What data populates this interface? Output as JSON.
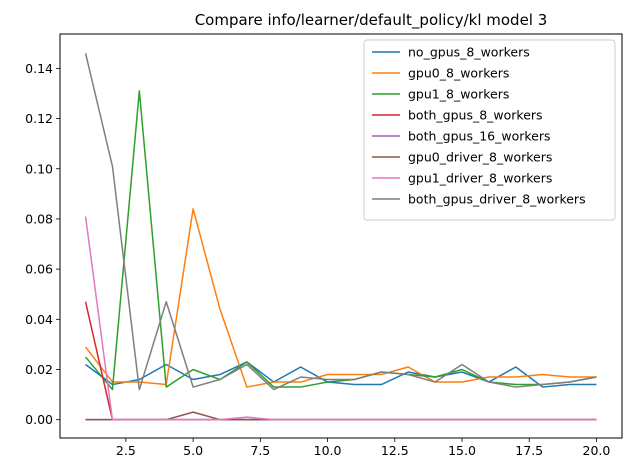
{
  "chart_data": {
    "type": "line",
    "title": "Compare info/learner/default_policy/kl model 3",
    "xlabel": "",
    "ylabel": "",
    "xlim": [
      0.05,
      20.95
    ],
    "ylim": [
      -0.0073,
      0.1537
    ],
    "xticks": [
      2.5,
      5.0,
      7.5,
      10.0,
      12.5,
      15.0,
      17.5,
      20.0
    ],
    "xtick_labels": [
      "2.5",
      "5.0",
      "7.5",
      "10.0",
      "12.5",
      "15.0",
      "17.5",
      "20.0"
    ],
    "yticks": [
      0.0,
      0.02,
      0.04,
      0.06,
      0.08,
      0.1,
      0.12,
      0.14
    ],
    "ytick_labels": [
      "0.00",
      "0.02",
      "0.04",
      "0.06",
      "0.08",
      "0.10",
      "0.12",
      "0.14"
    ],
    "grid": false,
    "legend_position": "top-right",
    "x": [
      1,
      2,
      3,
      4,
      5,
      6,
      7,
      8,
      9,
      10,
      11,
      12,
      13,
      14,
      15,
      16,
      17,
      18,
      19,
      20
    ],
    "series": [
      {
        "name": "no_gpus_8_workers",
        "color": "#1f77b4",
        "values": [
          0.022,
          0.014,
          0.016,
          0.022,
          0.016,
          0.018,
          0.023,
          0.015,
          0.021,
          0.015,
          0.014,
          0.014,
          0.019,
          0.017,
          0.019,
          0.015,
          0.021,
          0.013,
          0.014,
          0.014
        ]
      },
      {
        "name": "gpu0_8_workers",
        "color": "#ff7f0e",
        "values": [
          0.029,
          0.015,
          0.015,
          0.014,
          0.084,
          0.044,
          0.013,
          0.015,
          0.015,
          0.018,
          0.018,
          0.018,
          0.021,
          0.015,
          0.015,
          0.017,
          0.017,
          0.018,
          0.017,
          0.017
        ]
      },
      {
        "name": "gpu1_8_workers",
        "color": "#2ca02c",
        "values": [
          0.025,
          0.012,
          0.131,
          0.013,
          0.02,
          0.016,
          0.023,
          0.013,
          0.013,
          0.015,
          0.016,
          0.019,
          0.018,
          0.017,
          0.02,
          0.015,
          0.014,
          0.014,
          0.015,
          0.017
        ]
      },
      {
        "name": "both_gpus_8_workers",
        "color": "#d62728",
        "values": [
          0.047,
          0.0,
          0.0,
          0.0,
          0.0,
          0.0,
          0.0,
          0.0,
          0.0,
          0.0,
          0.0,
          0.0,
          0.0,
          0.0,
          0.0,
          0.0,
          0.0,
          0.0,
          0.0,
          0.0
        ]
      },
      {
        "name": "both_gpus_16_workers",
        "color": "#9467bd",
        "values": [
          0.0,
          0.0,
          0.0,
          0.0,
          0.0,
          0.0,
          0.0,
          0.0,
          0.0,
          0.0,
          0.0,
          0.0,
          0.0,
          0.0,
          0.0,
          0.0,
          0.0,
          0.0,
          0.0,
          0.0
        ]
      },
      {
        "name": "gpu0_driver_8_workers",
        "color": "#8c564b",
        "values": [
          0.0,
          0.0,
          0.0,
          0.0,
          0.003,
          0.0,
          0.0,
          0.0,
          0.0,
          0.0,
          0.0,
          0.0,
          0.0,
          0.0,
          0.0,
          0.0,
          0.0,
          0.0,
          0.0,
          0.0
        ]
      },
      {
        "name": "gpu1_driver_8_workers",
        "color": "#e377c2",
        "values": [
          0.081,
          0.0,
          0.0,
          0.0,
          0.0,
          0.0,
          0.001,
          0.0,
          0.0,
          0.0,
          0.0,
          0.0,
          0.0,
          0.0,
          0.0,
          0.0,
          0.0,
          0.0,
          0.0,
          0.0
        ]
      },
      {
        "name": "both_gpus_driver_8_workers",
        "color": "#7f7f7f",
        "values": [
          0.146,
          0.101,
          0.012,
          0.047,
          0.013,
          0.016,
          0.022,
          0.012,
          0.017,
          0.016,
          0.016,
          0.019,
          0.018,
          0.015,
          0.022,
          0.015,
          0.013,
          0.014,
          0.015,
          0.017
        ]
      }
    ]
  }
}
